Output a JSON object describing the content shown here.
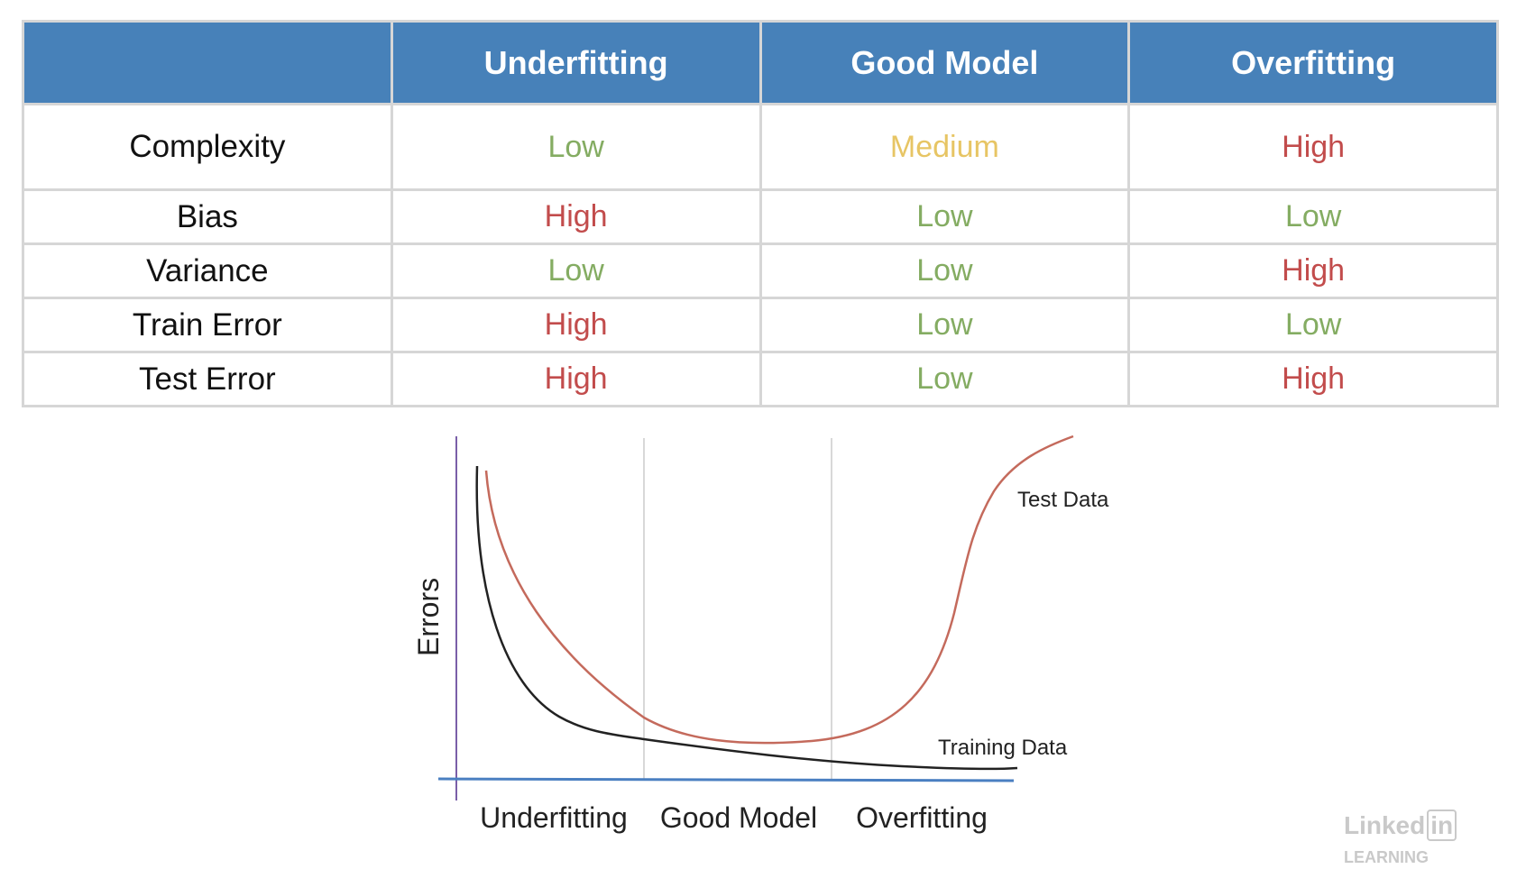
{
  "table": {
    "columns": [
      "",
      "Underfitting",
      "Good Model",
      "Overfitting"
    ],
    "rows": [
      {
        "label": "Complexity",
        "cells": [
          {
            "text": "Low",
            "level": "low"
          },
          {
            "text": "Medium",
            "level": "medium"
          },
          {
            "text": "High",
            "level": "high"
          }
        ]
      },
      {
        "label": "Bias",
        "cells": [
          {
            "text": "High",
            "level": "high"
          },
          {
            "text": "Low",
            "level": "low"
          },
          {
            "text": "Low",
            "level": "low"
          }
        ]
      },
      {
        "label": "Variance",
        "cells": [
          {
            "text": "Low",
            "level": "low"
          },
          {
            "text": "Low",
            "level": "low"
          },
          {
            "text": "High",
            "level": "high"
          }
        ]
      },
      {
        "label": "Train Error",
        "cells": [
          {
            "text": "High",
            "level": "high"
          },
          {
            "text": "Low",
            "level": "low"
          },
          {
            "text": "Low",
            "level": "low"
          }
        ]
      },
      {
        "label": "Test Error",
        "cells": [
          {
            "text": "High",
            "level": "high"
          },
          {
            "text": "Low",
            "level": "low"
          },
          {
            "text": "High",
            "level": "high"
          }
        ]
      }
    ],
    "colors": {
      "header_bg": "#4781b9",
      "low": "#84ac62",
      "medium": "#e7c564",
      "high": "#c24c4c"
    }
  },
  "diagram": {
    "y_axis_label": "Errors",
    "regions": [
      "Underfitting",
      "Good Model",
      "Overfitting"
    ],
    "curves": {
      "test": {
        "label": "Test Data",
        "color": "#c46a5c"
      },
      "training": {
        "label": "Training Data",
        "color": "#222222"
      }
    },
    "colors": {
      "y_axis": "#7a5fa8",
      "x_axis": "#4a7fc1",
      "divider": "#d8d8d8"
    }
  },
  "watermark": {
    "brand": "Linked",
    "in": "in",
    "suffix": "LEARNING"
  }
}
